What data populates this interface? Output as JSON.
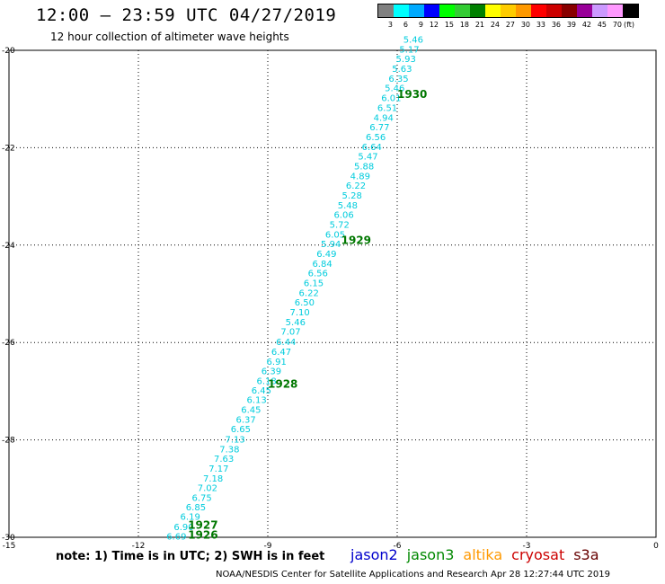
{
  "header": {
    "title": "12:00 – 23:59 UTC 04/27/2019",
    "subtitle": "12 hour collection of altimeter wave heights"
  },
  "legend": {
    "colors": [
      "#808080",
      "#00ffff",
      "#00aaff",
      "#0000ff",
      "#00ff00",
      "#33cc33",
      "#008000",
      "#ffff00",
      "#ffcc00",
      "#ff9900",
      "#ff0000",
      "#cc0000",
      "#880000",
      "#990099",
      "#cc99ff",
      "#ff99ff",
      "#000000"
    ],
    "labels": [
      "3",
      "6",
      "9",
      "12",
      "15",
      "18",
      "21",
      "24",
      "27",
      "30",
      "33",
      "36",
      "39",
      "42",
      "45",
      "70"
    ],
    "unit": "(ft)"
  },
  "footer": {
    "note": "note: 1) Time is in UTC; 2) SWH is in feet",
    "satellites": [
      {
        "name": "jason2",
        "color": "#0000cc"
      },
      {
        "name": "jason3",
        "color": "#008800"
      },
      {
        "name": "altika",
        "color": "#ff9900"
      },
      {
        "name": "cryosat",
        "color": "#cc0000"
      },
      {
        "name": "s3a",
        "color": "#660000"
      }
    ],
    "credit": "NOAA/NESDIS Center for Satellite Applications and Research    Apr 28 12:27:44 UTC 2019"
  },
  "chart_data": {
    "type": "scatter",
    "xlim": [
      -15,
      0
    ],
    "ylim": [
      -30,
      -20
    ],
    "x_ticks": [
      -15,
      -12,
      -9,
      -6,
      -3,
      0
    ],
    "y_ticks": [
      -20,
      -22,
      -24,
      -26,
      -28,
      -30
    ],
    "grid": true,
    "point_color": "#00ccdd",
    "time_color": "#007700",
    "series": [
      {
        "points": [
          {
            "lon": -11.35,
            "lat": -29.97,
            "value": "6.69"
          },
          {
            "lon": -11.18,
            "lat": -29.78,
            "value": "6.90"
          },
          {
            "lon": -11.03,
            "lat": -29.57,
            "value": "6.19"
          },
          {
            "lon": -10.9,
            "lat": -29.37,
            "value": "6.85"
          },
          {
            "lon": -10.76,
            "lat": -29.18,
            "value": "6.75"
          },
          {
            "lon": -10.63,
            "lat": -28.98,
            "value": "7.02"
          },
          {
            "lon": -10.5,
            "lat": -28.78,
            "value": "7.18"
          },
          {
            "lon": -10.37,
            "lat": -28.58,
            "value": "7.17"
          },
          {
            "lon": -10.25,
            "lat": -28.38,
            "value": "7.63"
          },
          {
            "lon": -10.12,
            "lat": -28.18,
            "value": "7.38"
          },
          {
            "lon": -9.99,
            "lat": -27.98,
            "value": "7.13"
          },
          {
            "lon": -9.86,
            "lat": -27.77,
            "value": "6.65"
          },
          {
            "lon": -9.74,
            "lat": -27.57,
            "value": "6.37"
          },
          {
            "lon": -9.62,
            "lat": -27.37,
            "value": "6.45"
          },
          {
            "lon": -9.49,
            "lat": -27.17,
            "value": "6.13"
          },
          {
            "lon": -9.38,
            "lat": -26.97,
            "value": "6.45"
          },
          {
            "lon": -9.26,
            "lat": -26.78,
            "value": "6.18"
          },
          {
            "lon": -9.15,
            "lat": -26.58,
            "value": "6.39"
          },
          {
            "lon": -9.03,
            "lat": -26.38,
            "value": "6.91"
          },
          {
            "lon": -8.92,
            "lat": -26.18,
            "value": "6.47"
          },
          {
            "lon": -8.81,
            "lat": -25.98,
            "value": "6.44"
          },
          {
            "lon": -8.7,
            "lat": -25.77,
            "value": "7.07"
          },
          {
            "lon": -8.59,
            "lat": -25.57,
            "value": "5.46"
          },
          {
            "lon": -8.49,
            "lat": -25.37,
            "value": "7.10"
          },
          {
            "lon": -8.38,
            "lat": -25.17,
            "value": "6.50"
          },
          {
            "lon": -8.28,
            "lat": -24.97,
            "value": "6.22"
          },
          {
            "lon": -8.17,
            "lat": -24.77,
            "value": "6.15"
          },
          {
            "lon": -8.07,
            "lat": -24.57,
            "value": "6.56"
          },
          {
            "lon": -7.97,
            "lat": -24.37,
            "value": "6.84"
          },
          {
            "lon": -7.87,
            "lat": -24.17,
            "value": "6.49"
          },
          {
            "lon": -7.77,
            "lat": -23.97,
            "value": "5.94"
          },
          {
            "lon": -7.67,
            "lat": -23.77,
            "value": "6.05"
          },
          {
            "lon": -7.57,
            "lat": -23.57,
            "value": "5.72"
          },
          {
            "lon": -7.47,
            "lat": -23.37,
            "value": "6.06"
          },
          {
            "lon": -7.38,
            "lat": -23.17,
            "value": "5.48"
          },
          {
            "lon": -7.28,
            "lat": -22.97,
            "value": "5.28"
          },
          {
            "lon": -7.19,
            "lat": -22.77,
            "value": "6.22"
          },
          {
            "lon": -7.09,
            "lat": -22.57,
            "value": "4.89"
          },
          {
            "lon": -7.0,
            "lat": -22.37,
            "value": "5.88"
          },
          {
            "lon": -6.91,
            "lat": -22.17,
            "value": "5.47"
          },
          {
            "lon": -6.82,
            "lat": -21.97,
            "value": "6.64"
          },
          {
            "lon": -6.73,
            "lat": -21.77,
            "value": "6.56"
          },
          {
            "lon": -6.64,
            "lat": -21.57,
            "value": "6.77"
          },
          {
            "lon": -6.55,
            "lat": -21.37,
            "value": "4.94"
          },
          {
            "lon": -6.46,
            "lat": -21.17,
            "value": "6.51"
          },
          {
            "lon": -6.37,
            "lat": -20.97,
            "value": "6.01"
          },
          {
            "lon": -6.29,
            "lat": -20.77,
            "value": "5.46"
          },
          {
            "lon": -6.2,
            "lat": -20.57,
            "value": "6.35"
          },
          {
            "lon": -6.12,
            "lat": -20.37,
            "value": "5.63"
          },
          {
            "lon": -6.03,
            "lat": -20.17,
            "value": "5.93"
          },
          {
            "lon": -5.95,
            "lat": -19.97,
            "value": "5.17"
          },
          {
            "lon": -5.86,
            "lat": -19.77,
            "value": "5.46"
          }
        ]
      }
    ],
    "time_labels": [
      {
        "lon": -10.85,
        "lat": -29.95,
        "text": "1926"
      },
      {
        "lon": -10.85,
        "lat": -29.75,
        "text": "1927"
      },
      {
        "lon": -9.0,
        "lat": -26.85,
        "text": "1928"
      },
      {
        "lon": -7.3,
        "lat": -23.9,
        "text": "1929"
      },
      {
        "lon": -6.0,
        "lat": -20.9,
        "text": "1930"
      }
    ]
  }
}
